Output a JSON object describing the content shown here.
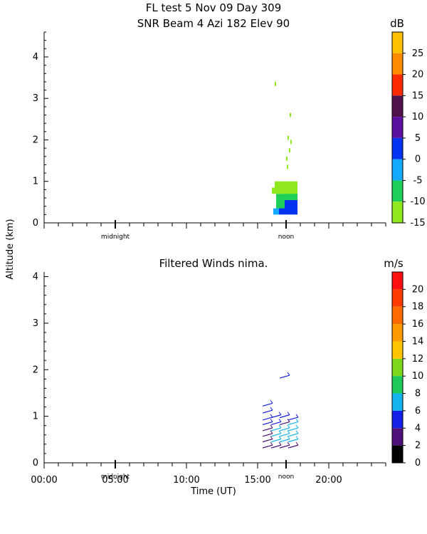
{
  "header": {
    "title_line1": "FL test    5 Nov 09 Day 309",
    "title_line2": "SNR Beam 4 Azi 182 Elev 90"
  },
  "shared": {
    "ylabel": "Altitude (km)",
    "xlabel": "Time (UT)",
    "day_labels": [
      "midnight",
      "noon"
    ]
  },
  "chart_data": [
    {
      "type": "heatmap",
      "title": "SNR Beam 4 Azi 182 Elev 90",
      "xlabel": "",
      "ylabel": "Altitude (km)",
      "x_unit": "hours UT",
      "xlim": [
        0,
        24
      ],
      "ylim": [
        0,
        4.6
      ],
      "yticks": [
        0,
        1,
        2,
        3,
        4
      ],
      "day_markers": [
        {
          "label": "midnight",
          "x": 5
        },
        {
          "label": "noon",
          "x": 17
        }
      ],
      "colorbar": {
        "unit": "dB",
        "range": [
          -15,
          30
        ],
        "ticks": [
          25,
          20,
          15,
          10,
          5,
          0,
          -5,
          -10,
          -15
        ],
        "bands": [
          {
            "from": 25,
            "to": 30,
            "color": "#ffc000"
          },
          {
            "from": 20,
            "to": 25,
            "color": "#ff8c00"
          },
          {
            "from": 15,
            "to": 20,
            "color": "#ff2a00"
          },
          {
            "from": 10,
            "to": 15,
            "color": "#50104a"
          },
          {
            "from": 5,
            "to": 10,
            "color": "#5a109f"
          },
          {
            "from": 0,
            "to": 5,
            "color": "#0032f0"
          },
          {
            "from": -5,
            "to": 0,
            "color": "#14aaff"
          },
          {
            "from": -10,
            "to": -5,
            "color": "#1ed05a"
          },
          {
            "from": -15,
            "to": -10,
            "color": "#90e81e"
          }
        ]
      },
      "cells": [
        {
          "x": [
            16.1,
            16.5
          ],
          "y": [
            0.2,
            0.35
          ],
          "snr": -3
        },
        {
          "x": [
            16.5,
            17.8
          ],
          "y": [
            0.2,
            0.55
          ],
          "snr": 2
        },
        {
          "x": [
            16.8,
            17.8
          ],
          "y": [
            0.55,
            0.8
          ],
          "snr": -8
        },
        {
          "x": [
            16.3,
            16.9
          ],
          "y": [
            0.35,
            0.7
          ],
          "snr": -7
        },
        {
          "x": [
            16.2,
            17.8
          ],
          "y": [
            0.7,
            1.0
          ],
          "snr": -12
        },
        {
          "x": [
            16.0,
            16.2
          ],
          "y": [
            0.7,
            0.85
          ],
          "snr": -13
        },
        {
          "x": [
            16.2,
            16.3
          ],
          "y": [
            3.3,
            3.4
          ],
          "snr": -12
        },
        {
          "x": [
            17.1,
            17.2
          ],
          "y": [
            2.0,
            2.1
          ],
          "snr": -12
        },
        {
          "x": [
            17.2,
            17.3
          ],
          "y": [
            1.7,
            1.8
          ],
          "snr": -12
        },
        {
          "x": [
            17.0,
            17.1
          ],
          "y": [
            1.5,
            1.6
          ],
          "snr": -12
        },
        {
          "x": [
            17.3,
            17.4
          ],
          "y": [
            1.9,
            2.0
          ],
          "snr": -12
        },
        {
          "x": [
            17.25,
            17.35
          ],
          "y": [
            2.55,
            2.65
          ],
          "snr": -12
        },
        {
          "x": [
            17.05,
            17.15
          ],
          "y": [
            1.3,
            1.4
          ],
          "snr": -12
        }
      ]
    },
    {
      "type": "scatter",
      "title": "Filtered Winds nima.",
      "xlabel": "Time (UT)",
      "ylabel": "Altitude (km)",
      "x_unit": "hours UT",
      "xlim": [
        0,
        24
      ],
      "ylim": [
        0,
        4.1
      ],
      "yticks": [
        0,
        1,
        2,
        3,
        4
      ],
      "xticks": [
        "00:00",
        "05:00",
        "10:00",
        "15:00",
        "20:00"
      ],
      "xtick_values": [
        0,
        5,
        10,
        15,
        20
      ],
      "day_markers": [
        {
          "label": "midnight",
          "x": 5
        },
        {
          "label": "noon",
          "x": 17
        }
      ],
      "colorbar": {
        "unit": "m/s",
        "range": [
          0,
          22
        ],
        "ticks": [
          20,
          18,
          16,
          14,
          12,
          10,
          8,
          6,
          4,
          2,
          0
        ],
        "bands": [
          {
            "from": 20,
            "to": 22,
            "color": "#ff1010"
          },
          {
            "from": 18,
            "to": 20,
            "color": "#ff3a00"
          },
          {
            "from": 16,
            "to": 18,
            "color": "#ff6a00"
          },
          {
            "from": 14,
            "to": 16,
            "color": "#ff9a00"
          },
          {
            "from": 12,
            "to": 14,
            "color": "#ffc400"
          },
          {
            "from": 10,
            "to": 12,
            "color": "#7ed81e"
          },
          {
            "from": 8,
            "to": 10,
            "color": "#1ec85a"
          },
          {
            "from": 6,
            "to": 8,
            "color": "#14b4f0"
          },
          {
            "from": 4,
            "to": 6,
            "color": "#1420e8"
          },
          {
            "from": 2,
            "to": 4,
            "color": "#50107a"
          },
          {
            "from": 0,
            "to": 2,
            "color": "#000000"
          }
        ]
      },
      "barbs": [
        {
          "x": 15.7,
          "y": 1.25,
          "speed": 4
        },
        {
          "x": 15.7,
          "y": 1.1,
          "speed": 5
        },
        {
          "x": 15.7,
          "y": 0.95,
          "speed": 4
        },
        {
          "x": 15.7,
          "y": 0.85,
          "speed": 4
        },
        {
          "x": 15.7,
          "y": 0.72,
          "speed": 3
        },
        {
          "x": 15.7,
          "y": 0.6,
          "speed": 3
        },
        {
          "x": 15.7,
          "y": 0.48,
          "speed": 3
        },
        {
          "x": 15.7,
          "y": 0.35,
          "speed": 3
        },
        {
          "x": 16.3,
          "y": 1.0,
          "speed": 4
        },
        {
          "x": 16.3,
          "y": 0.85,
          "speed": 5
        },
        {
          "x": 16.3,
          "y": 0.72,
          "speed": 7
        },
        {
          "x": 16.3,
          "y": 0.6,
          "speed": 7
        },
        {
          "x": 16.3,
          "y": 0.48,
          "speed": 6
        },
        {
          "x": 16.3,
          "y": 0.35,
          "speed": 3
        },
        {
          "x": 16.9,
          "y": 1.85,
          "speed": 4
        },
        {
          "x": 16.9,
          "y": 1.0,
          "speed": 4
        },
        {
          "x": 16.9,
          "y": 0.85,
          "speed": 3
        },
        {
          "x": 16.9,
          "y": 0.72,
          "speed": 7
        },
        {
          "x": 16.9,
          "y": 0.6,
          "speed": 7
        },
        {
          "x": 16.9,
          "y": 0.48,
          "speed": 6
        },
        {
          "x": 16.9,
          "y": 0.35,
          "speed": 3
        },
        {
          "x": 17.5,
          "y": 0.95,
          "speed": 4
        },
        {
          "x": 17.5,
          "y": 0.85,
          "speed": 7
        },
        {
          "x": 17.5,
          "y": 0.72,
          "speed": 7
        },
        {
          "x": 17.5,
          "y": 0.6,
          "speed": 7
        },
        {
          "x": 17.5,
          "y": 0.48,
          "speed": 6
        },
        {
          "x": 17.5,
          "y": 0.35,
          "speed": 3
        }
      ]
    }
  ]
}
